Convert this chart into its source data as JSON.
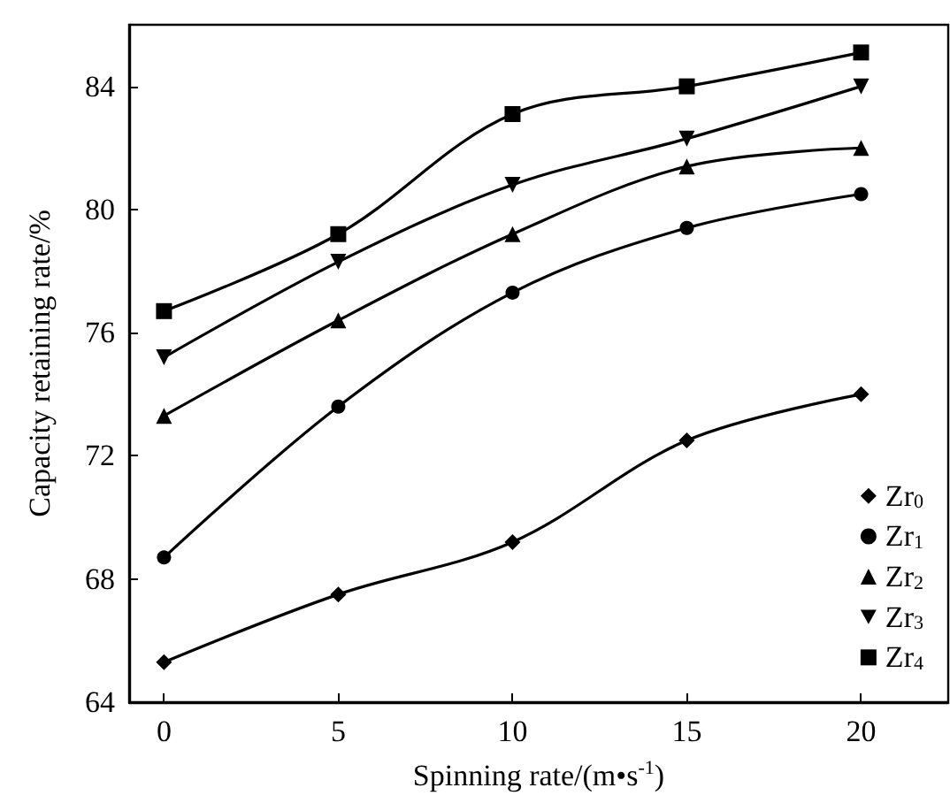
{
  "chart_data": {
    "type": "line",
    "xlabel": "Spinning rate/(m•s$^{-1}$)",
    "ylabel": "Capacity retaining rate/%",
    "x": [
      0,
      5,
      10,
      15,
      20
    ],
    "series": [
      {
        "name": "Zr$_{0}$",
        "color": "#000000",
        "marker": "diamond",
        "values": [
          65.3,
          67.5,
          69.2,
          72.5,
          74.0
        ]
      },
      {
        "name": "Zr$_{1}$",
        "color": "#000000",
        "marker": "circle",
        "values": [
          68.7,
          73.6,
          77.3,
          79.4,
          80.5
        ]
      },
      {
        "name": "Zr$_{2}$",
        "color": "#000000",
        "marker": "triangle",
        "values": [
          73.3,
          76.4,
          79.2,
          81.4,
          82.0
        ]
      },
      {
        "name": "Zr$_{3}$",
        "color": "#000000",
        "marker": "triangle-down",
        "values": [
          75.2,
          78.3,
          80.8,
          82.3,
          84.0
        ]
      },
      {
        "name": "Zr$_{4}$",
        "color": "#000000",
        "marker": "square",
        "values": [
          76.7,
          79.2,
          83.1,
          84.0,
          85.1
        ]
      }
    ],
    "xlim": [
      -1,
      22.5
    ],
    "xticks": [
      0,
      5,
      10,
      15,
      20
    ],
    "ylim": [
      64,
      86
    ],
    "yticks": [
      64,
      68,
      72,
      76,
      80,
      84
    ],
    "grid": false,
    "legend": "bottom right",
    "line_style": "solid"
  }
}
